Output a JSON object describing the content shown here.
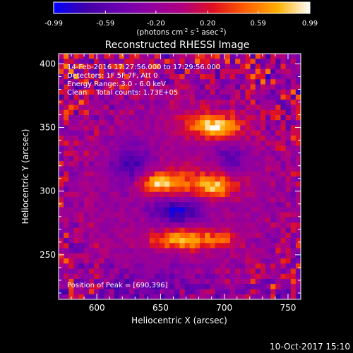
{
  "colorbar": {
    "tick_labels": [
      "-0.99",
      "-0.59",
      "-0.20",
      "0.20",
      "0.59",
      "0.99"
    ],
    "tick_values": [
      -0.99,
      -0.59,
      -0.2,
      0.2,
      0.59,
      0.99
    ],
    "range": [
      -0.99,
      0.99
    ],
    "units_text": "(photons cm",
    "units_parts": [
      "(photons cm",
      "-2",
      " s",
      "-1",
      " asec",
      "-2",
      ")"
    ],
    "stops": [
      "#0000ff",
      "#4000a8",
      "#6a00b0",
      "#9000a0",
      "#b00080",
      "#e01020",
      "#ff6000",
      "#ffb000",
      "#ffffff"
    ]
  },
  "chart_data": {
    "type": "heatmap",
    "title": "Reconstructed RHESSI Image",
    "xlabel": "Heliocentric X (arcsec)",
    "ylabel": "Heliocentric Y (arcsec)",
    "xlim": [
      570,
      760
    ],
    "ylim": [
      215,
      408
    ],
    "x_ticks": [
      600,
      650,
      700,
      750
    ],
    "y_ticks": [
      250,
      300,
      350,
      400
    ],
    "x_tick_labels": [
      "600",
      "650",
      "700",
      "750"
    ],
    "y_tick_labels": [
      "250",
      "300",
      "350",
      "400"
    ],
    "info_lines": [
      "14-Feb-2016 17:27:56.000 to 17:29:56.000",
      "Detectors: 1F 5F 7F, Att 0",
      "Energy Range: 3.0 - 6.0 keV",
      "Clean    Total counts: 1.73E+05"
    ],
    "annotation": "Position of Peak = [690,396]",
    "peak": [
      690,
      396
    ],
    "grid_nx": 48,
    "grid_ny": 48,
    "features": [
      {
        "x": 695,
        "y": 350,
        "sx": 14,
        "sy": 6,
        "a": 0.85
      },
      {
        "x": 680,
        "y": 355,
        "sx": 18,
        "sy": 8,
        "a": 0.35
      },
      {
        "x": 648,
        "y": 306,
        "sx": 14,
        "sy": 6,
        "a": 0.8
      },
      {
        "x": 693,
        "y": 303,
        "sx": 11,
        "sy": 6,
        "a": 0.8
      },
      {
        "x": 672,
        "y": 310,
        "sx": 26,
        "sy": 9,
        "a": 0.35
      },
      {
        "x": 668,
        "y": 262,
        "sx": 19,
        "sy": 6,
        "a": 0.9
      },
      {
        "x": 700,
        "y": 262,
        "sx": 9,
        "sy": 5,
        "a": 0.4
      },
      {
        "x": 663,
        "y": 284,
        "sx": 13,
        "sy": 7,
        "a": -0.75
      },
      {
        "x": 628,
        "y": 318,
        "sx": 11,
        "sy": 13,
        "a": -0.55
      },
      {
        "x": 705,
        "y": 325,
        "sx": 9,
        "sy": 7,
        "a": -0.45
      },
      {
        "x": 640,
        "y": 225,
        "sx": 30,
        "sy": 12,
        "a": -0.3
      }
    ]
  },
  "footer": {
    "date": "10-Oct-2017 15:10"
  }
}
